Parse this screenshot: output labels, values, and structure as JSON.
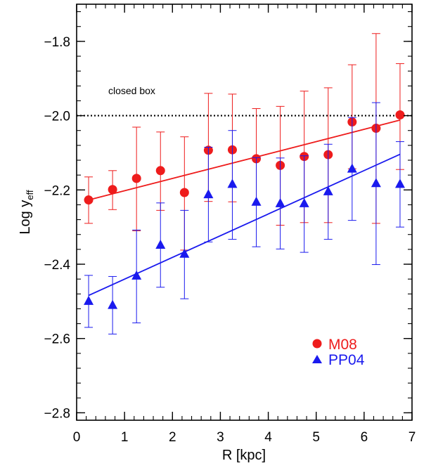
{
  "chart_data": {
    "type": "scatter",
    "xlabel": "R [kpc]",
    "ylabel_main": "Log y",
    "ylabel_sub": "eff",
    "xlim": [
      0,
      7
    ],
    "ylim": [
      -2.82,
      -1.7
    ],
    "x_ticks": [
      0,
      1,
      2,
      3,
      4,
      5,
      6,
      7
    ],
    "y_ticks": [
      -2.8,
      -2.6,
      -2.4,
      -2.2,
      -2.0,
      -1.8
    ],
    "x_tick_labels": [
      "0",
      "1",
      "2",
      "3",
      "4",
      "5",
      "6",
      "7"
    ],
    "y_tick_labels": [
      "−2.8",
      "−2.6",
      "−2.4",
      "−2.2",
      "−2.0",
      "−1.8"
    ],
    "grid": false,
    "reference_line": {
      "y": -2.0,
      "label": "closed box",
      "style": "dotted",
      "color": "#000000"
    },
    "legend_position": "lower-right",
    "series": [
      {
        "name": "M08",
        "marker": "circle",
        "color": "#ee1c1c",
        "x": [
          0.25,
          0.75,
          1.25,
          1.75,
          2.25,
          2.75,
          3.25,
          3.75,
          4.25,
          4.75,
          5.25,
          5.75,
          6.25,
          6.75
        ],
        "y": [
          -2.227,
          -2.199,
          -2.169,
          -2.148,
          -2.207,
          -2.093,
          -2.092,
          -2.116,
          -2.134,
          -2.11,
          -2.105,
          -2.017,
          -2.034,
          -1.998
        ],
        "yerr_low": [
          -2.29,
          -2.253,
          -2.31,
          -2.255,
          -2.362,
          -2.231,
          -2.232,
          -2.24,
          -2.295,
          -2.288,
          -2.288,
          -2.143,
          -2.29,
          -2.145
        ],
        "yerr_high": [
          -2.165,
          -2.148,
          -2.031,
          -2.044,
          -2.057,
          -1.94,
          -1.942,
          -1.981,
          -1.975,
          -1.934,
          -1.925,
          -1.863,
          -1.779,
          -1.86
        ],
        "fit": {
          "x": [
            0.25,
            6.75
          ],
          "y": [
            -2.227,
            -2.012
          ]
        }
      },
      {
        "name": "PP04",
        "marker": "triangle",
        "color": "#1a1aee",
        "x": [
          0.25,
          0.75,
          1.25,
          1.75,
          2.25,
          2.75,
          3.25,
          3.75,
          4.25,
          4.75,
          5.25,
          5.75,
          6.25,
          6.75
        ],
        "y": [
          -2.5,
          -2.511,
          -2.432,
          -2.349,
          -2.373,
          -2.213,
          -2.185,
          -2.233,
          -2.237,
          -2.237,
          -2.205,
          -2.144,
          -2.183,
          -2.185
        ],
        "yerr_low": [
          -2.57,
          -2.588,
          -2.558,
          -2.462,
          -2.493,
          -2.34,
          -2.333,
          -2.353,
          -2.359,
          -2.368,
          -2.333,
          -2.282,
          -2.401,
          -2.3
        ],
        "yerr_high": [
          -2.43,
          -2.433,
          -2.308,
          -2.235,
          -2.255,
          -2.085,
          -2.04,
          -2.113,
          -2.114,
          -2.108,
          -2.077,
          -2.005,
          -1.965,
          -2.07
        ],
        "fit": {
          "x": [
            0.25,
            6.75
          ],
          "y": [
            -2.484,
            -2.104
          ]
        }
      }
    ]
  }
}
